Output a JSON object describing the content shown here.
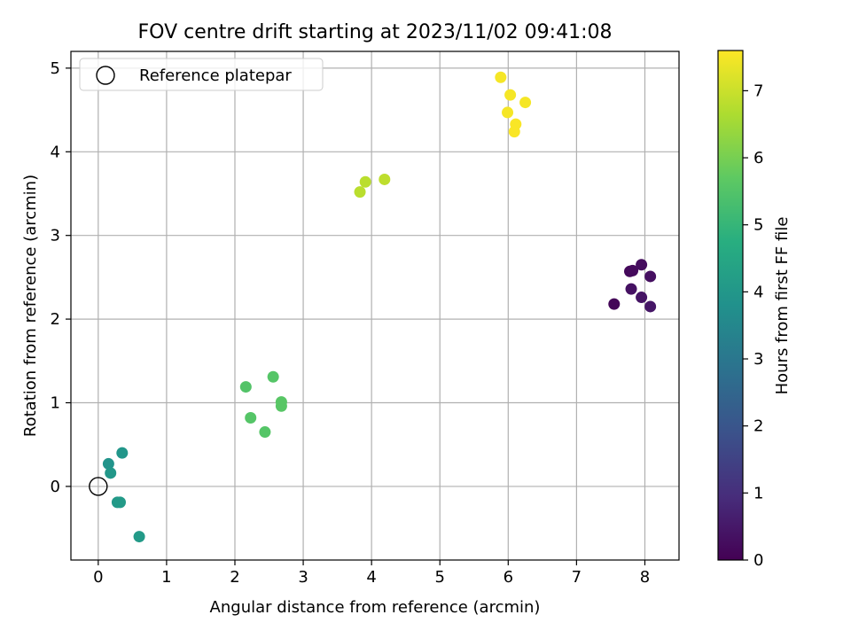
{
  "chart_data": {
    "type": "scatter",
    "title": "FOV centre drift starting at 2023/11/02 09:41:08",
    "xlabel": "Angular distance from reference (arcmin)",
    "ylabel": "Rotation from reference (arcmin)",
    "xlim": [
      -0.4,
      8.5
    ],
    "ylim": [
      -0.88,
      5.2
    ],
    "xticks": [
      0,
      1,
      2,
      3,
      4,
      5,
      6,
      7,
      8
    ],
    "yticks": [
      0,
      1,
      2,
      3,
      4,
      5
    ],
    "grid": true,
    "legend": {
      "placement": "upper-left",
      "entries": [
        "Reference platepar"
      ]
    },
    "reference_point": {
      "x": 0,
      "y": 0,
      "marker": "open-circle",
      "color": "#000000"
    },
    "colorbar": {
      "label": "Hours from first FF file",
      "range": [
        0,
        7.6
      ],
      "ticks": [
        0,
        1,
        2,
        3,
        4,
        5,
        6,
        7
      ],
      "colormap": "viridis"
    },
    "points": [
      {
        "x": 7.55,
        "y": 2.18,
        "c": 0.1
      },
      {
        "x": 7.78,
        "y": 2.57,
        "c": 0.15
      },
      {
        "x": 7.82,
        "y": 2.58,
        "c": 0.2
      },
      {
        "x": 7.95,
        "y": 2.65,
        "c": 0.25
      },
      {
        "x": 8.08,
        "y": 2.51,
        "c": 0.3
      },
      {
        "x": 7.8,
        "y": 2.36,
        "c": 0.35
      },
      {
        "x": 7.95,
        "y": 2.26,
        "c": 0.4
      },
      {
        "x": 8.08,
        "y": 2.15,
        "c": 0.45
      },
      {
        "x": 0.15,
        "y": 0.27,
        "c": 3.9
      },
      {
        "x": 0.35,
        "y": 0.4,
        "c": 3.95
      },
      {
        "x": 0.18,
        "y": 0.16,
        "c": 4.0
      },
      {
        "x": 0.28,
        "y": -0.19,
        "c": 4.05
      },
      {
        "x": 0.32,
        "y": -0.19,
        "c": 4.1
      },
      {
        "x": 0.6,
        "y": -0.6,
        "c": 4.1
      },
      {
        "x": 2.16,
        "y": 1.19,
        "c": 5.5
      },
      {
        "x": 2.56,
        "y": 1.31,
        "c": 5.55
      },
      {
        "x": 2.68,
        "y": 1.01,
        "c": 5.6
      },
      {
        "x": 2.68,
        "y": 0.96,
        "c": 5.6
      },
      {
        "x": 2.23,
        "y": 0.82,
        "c": 5.55
      },
      {
        "x": 2.44,
        "y": 0.65,
        "c": 5.55
      },
      {
        "x": 3.83,
        "y": 3.52,
        "c": 6.8
      },
      {
        "x": 3.91,
        "y": 3.64,
        "c": 6.8
      },
      {
        "x": 4.19,
        "y": 3.67,
        "c": 6.85
      },
      {
        "x": 5.89,
        "y": 4.89,
        "c": 7.5
      },
      {
        "x": 6.03,
        "y": 4.68,
        "c": 7.5
      },
      {
        "x": 6.25,
        "y": 4.59,
        "c": 7.5
      },
      {
        "x": 5.99,
        "y": 4.47,
        "c": 7.5
      },
      {
        "x": 6.11,
        "y": 4.33,
        "c": 7.55
      },
      {
        "x": 6.09,
        "y": 4.24,
        "c": 7.55
      }
    ]
  }
}
